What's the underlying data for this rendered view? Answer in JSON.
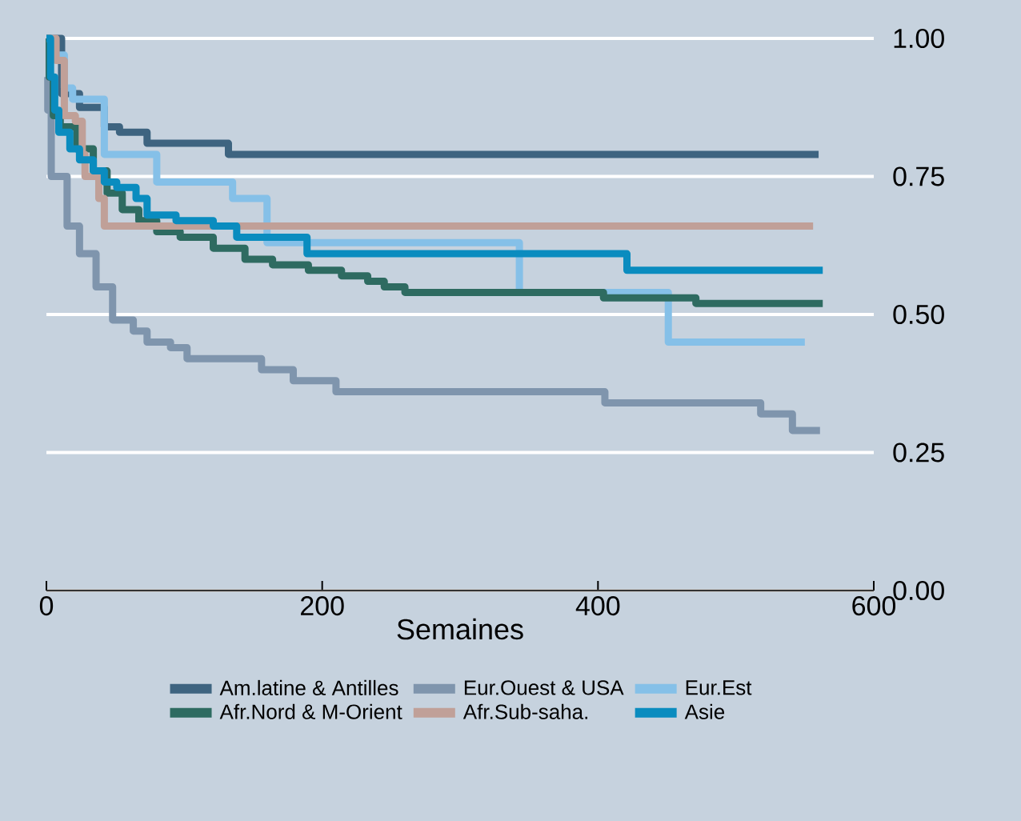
{
  "chart_data": {
    "type": "step",
    "xlabel": "Semaines",
    "xlim": [
      0,
      600
    ],
    "xticks": [
      0,
      200,
      400,
      600
    ],
    "ylim": [
      0,
      1
    ],
    "yticks": [
      {
        "value": 0,
        "label": "0.00"
      },
      {
        "value": 0.25,
        "label": "0.25"
      },
      {
        "value": 0.5,
        "label": "0.50"
      },
      {
        "value": 0.75,
        "label": "0.75"
      },
      {
        "value": 1,
        "label": "1.00"
      }
    ],
    "grid": "y",
    "legend": "bottom",
    "line_style": "solid",
    "marker": "none",
    "series": [
      {
        "name": "Am.latine & Antilles",
        "color": "#3e6480",
        "x": [
          0,
          11,
          24,
          42,
          53,
          73,
          132,
          560
        ],
        "values": [
          1.0,
          0.9,
          0.875,
          0.84,
          0.83,
          0.81,
          0.79,
          0.79
        ]
      },
      {
        "name": "Eur.Ouest & USA",
        "color": "#7f95ad",
        "x": [
          0,
          1,
          3.5,
          15,
          24,
          36,
          48,
          63,
          73,
          90,
          102,
          156,
          179,
          210,
          405,
          518,
          541,
          561
        ],
        "values": [
          0.93,
          0.87,
          0.75,
          0.66,
          0.61,
          0.55,
          0.49,
          0.47,
          0.45,
          0.44,
          0.42,
          0.4,
          0.38,
          0.36,
          0.34,
          0.32,
          0.29,
          0.29
        ]
      },
      {
        "name": "Eur.Est",
        "color": "#85c0e8",
        "x": [
          0,
          5,
          13,
          19,
          42,
          80,
          135,
          160,
          343,
          451,
          550
        ],
        "values": [
          1.0,
          0.97,
          0.91,
          0.89,
          0.79,
          0.74,
          0.71,
          0.63,
          0.54,
          0.45,
          0.45
        ]
      },
      {
        "name": "Afr.Nord & M-Orient",
        "color": "#2e6b61",
        "x": [
          0,
          2,
          5,
          10,
          22,
          34,
          44,
          55,
          67,
          80,
          97,
          121,
          144,
          164,
          190,
          214,
          233,
          245,
          260,
          315,
          404,
          471,
          563
        ],
        "values": [
          1.0,
          0.93,
          0.86,
          0.84,
          0.8,
          0.76,
          0.72,
          0.69,
          0.67,
          0.65,
          0.64,
          0.62,
          0.6,
          0.59,
          0.58,
          0.57,
          0.56,
          0.55,
          0.54,
          0.54,
          0.53,
          0.52,
          0.52
        ]
      },
      {
        "name": "Afr.Sub-saha.",
        "color": "#c0a098",
        "x": [
          0,
          7,
          13,
          21,
          26,
          28,
          38,
          42,
          556
        ],
        "values": [
          1.0,
          0.96,
          0.86,
          0.85,
          0.79,
          0.75,
          0.71,
          0.66,
          0.66
        ]
      },
      {
        "name": "Asie",
        "color": "#0a8cbf",
        "x": [
          0,
          3,
          6,
          9,
          17,
          24,
          34,
          42,
          51,
          65,
          73,
          94,
          121,
          138,
          189,
          421,
          563
        ],
        "values": [
          1.0,
          0.93,
          0.87,
          0.83,
          0.8,
          0.78,
          0.76,
          0.74,
          0.73,
          0.71,
          0.68,
          0.67,
          0.66,
          0.64,
          0.61,
          0.58,
          0.58
        ]
      }
    ]
  }
}
